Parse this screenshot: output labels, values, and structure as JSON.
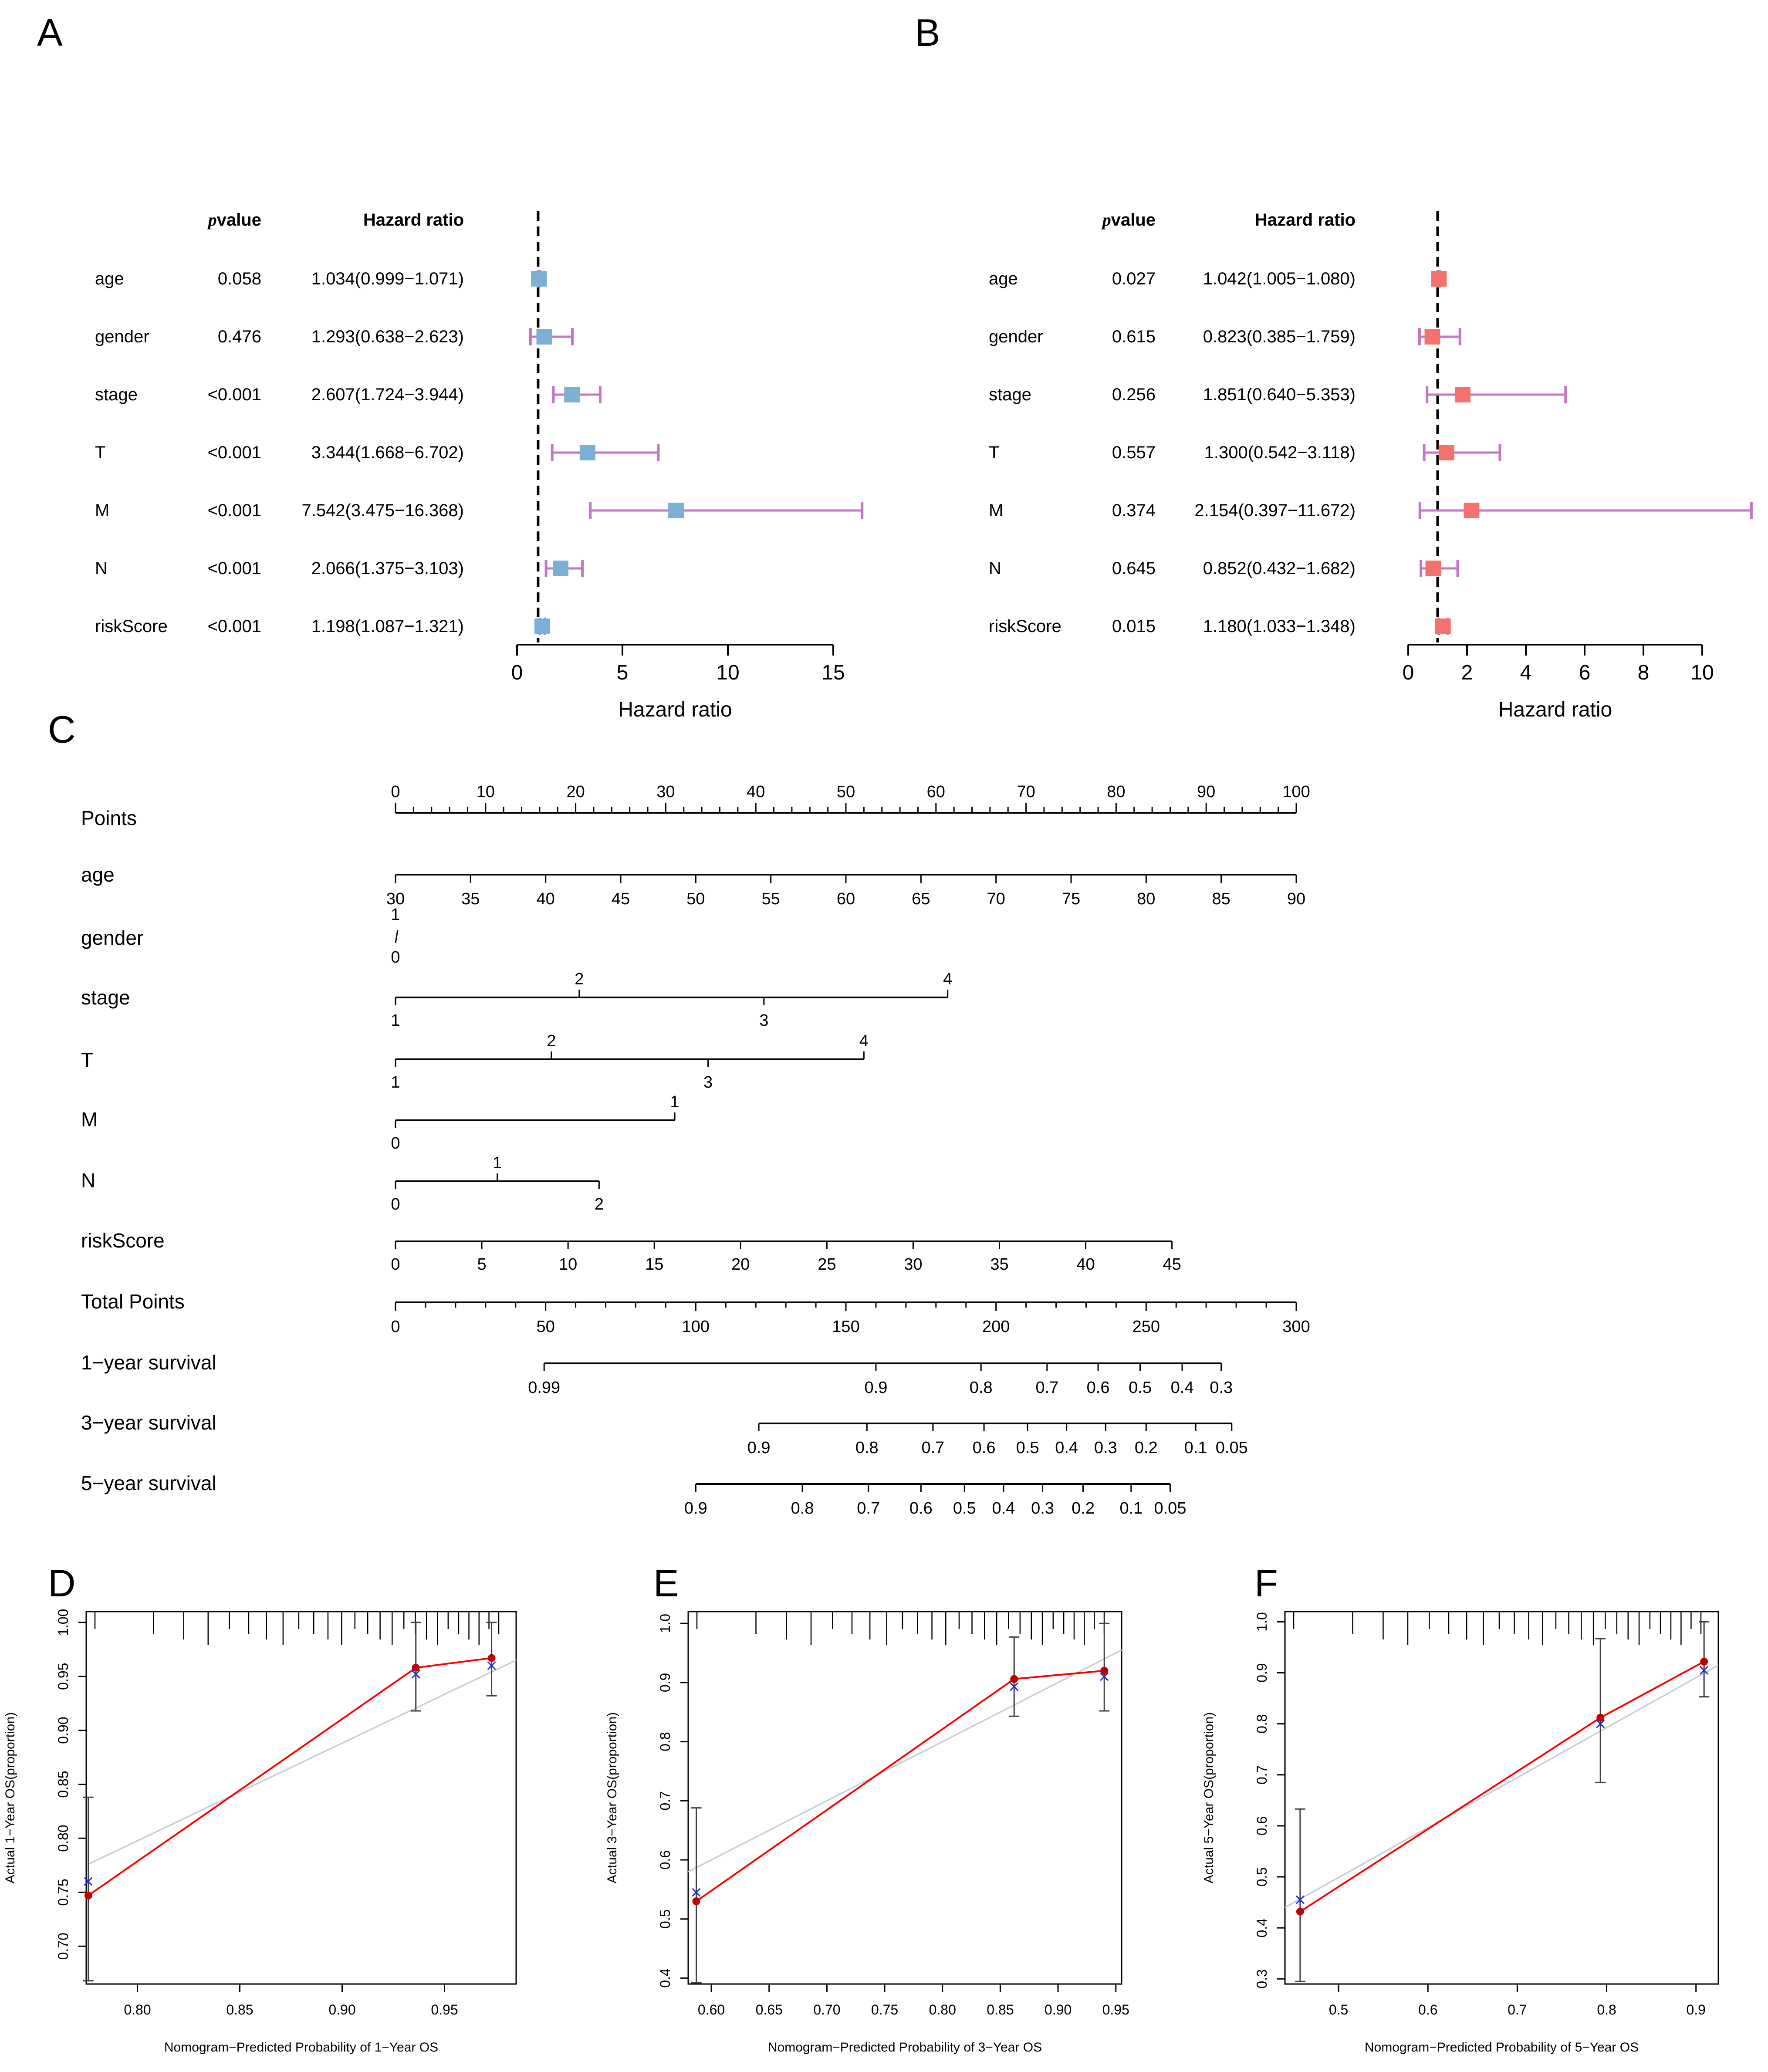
{
  "panel_labels": {
    "A": "A",
    "B": "B",
    "C": "C",
    "D": "D",
    "E": "E",
    "F": "F"
  },
  "forest_headers": {
    "pvalue": "pvalue",
    "hr": "Hazard ratio",
    "xlabel": "Hazard ratio"
  },
  "colors": {
    "forest_a_box": "#7bafd4",
    "forest_b_box": "#f4726d",
    "ci_line": "#c077c4",
    "cal_line": "#ff0000",
    "cal_point": "#c00000",
    "cal_x": "#1f2ed6",
    "cal_ideal": "#c8cdd8",
    "tick": "#000000"
  },
  "chart_data": [
    {
      "id": "A",
      "type": "forest",
      "rows": [
        {
          "name": "age",
          "p": "0.058",
          "hr_text": "1.034(0.999−1.071)",
          "hr": 1.034,
          "lo": 0.999,
          "hi": 1.071
        },
        {
          "name": "gender",
          "p": "0.476",
          "hr_text": "1.293(0.638−2.623)",
          "hr": 1.293,
          "lo": 0.638,
          "hi": 2.623
        },
        {
          "name": "stage",
          "p": "<0.001",
          "hr_text": "2.607(1.724−3.944)",
          "hr": 2.607,
          "lo": 1.724,
          "hi": 3.944
        },
        {
          "name": "T",
          "p": "<0.001",
          "hr_text": "3.344(1.668−6.702)",
          "hr": 3.344,
          "lo": 1.668,
          "hi": 6.702
        },
        {
          "name": "M",
          "p": "<0.001",
          "hr_text": "7.542(3.475−16.368)",
          "hr": 7.542,
          "lo": 3.475,
          "hi": 16.368
        },
        {
          "name": "N",
          "p": "<0.001",
          "hr_text": "2.066(1.375−3.103)",
          "hr": 2.066,
          "lo": 1.375,
          "hi": 3.103
        },
        {
          "name": "riskScore",
          "p": "<0.001",
          "hr_text": "1.198(1.087−1.321)",
          "hr": 1.198,
          "lo": 1.087,
          "hi": 1.321
        }
      ],
      "xlim": [
        0,
        15
      ],
      "ticks": [
        0,
        5,
        10,
        15
      ],
      "ref_line": 1
    },
    {
      "id": "B",
      "type": "forest",
      "rows": [
        {
          "name": "age",
          "p": "0.027",
          "hr_text": "1.042(1.005−1.080)",
          "hr": 1.042,
          "lo": 1.005,
          "hi": 1.08
        },
        {
          "name": "gender",
          "p": "0.615",
          "hr_text": "0.823(0.385−1.759)",
          "hr": 0.823,
          "lo": 0.385,
          "hi": 1.759
        },
        {
          "name": "stage",
          "p": "0.256",
          "hr_text": "1.851(0.640−5.353)",
          "hr": 1.851,
          "lo": 0.64,
          "hi": 5.353
        },
        {
          "name": "T",
          "p": "0.557",
          "hr_text": "1.300(0.542−3.118)",
          "hr": 1.3,
          "lo": 0.542,
          "hi": 3.118
        },
        {
          "name": "M",
          "p": "0.374",
          "hr_text": "2.154(0.397−11.672)",
          "hr": 2.154,
          "lo": 0.397,
          "hi": 11.672
        },
        {
          "name": "N",
          "p": "0.645",
          "hr_text": "0.852(0.432−1.682)",
          "hr": 0.852,
          "lo": 0.432,
          "hi": 1.682
        },
        {
          "name": "riskScore",
          "p": "0.015",
          "hr_text": "1.180(1.033−1.348)",
          "hr": 1.18,
          "lo": 1.033,
          "hi": 1.348
        }
      ],
      "xlim": [
        0,
        10
      ],
      "ticks": [
        0,
        2,
        4,
        6,
        8,
        10
      ],
      "ref_line": 1
    },
    {
      "id": "C",
      "type": "nomogram",
      "rows": [
        {
          "name": "Points",
          "kind": "points",
          "min": 0,
          "max": 100,
          "labels": [
            [
              0,
              "0"
            ],
            [
              10,
              "10"
            ],
            [
              20,
              "20"
            ],
            [
              30,
              "30"
            ],
            [
              40,
              "40"
            ],
            [
              50,
              "50"
            ],
            [
              60,
              "60"
            ],
            [
              70,
              "70"
            ],
            [
              80,
              "80"
            ],
            [
              90,
              "90"
            ],
            [
              100,
              "100"
            ]
          ]
        },
        {
          "name": "age",
          "kind": "scale",
          "pmin": 0,
          "pmax": 100,
          "labels": [
            [
              0,
              "30"
            ],
            [
              8.333,
              "35"
            ],
            [
              16.667,
              "40"
            ],
            [
              25,
              "45"
            ],
            [
              33.333,
              "50"
            ],
            [
              41.667,
              "55"
            ],
            [
              50,
              "60"
            ],
            [
              58.333,
              "65"
            ],
            [
              66.667,
              "70"
            ],
            [
              75,
              "75"
            ],
            [
              83.333,
              "80"
            ],
            [
              91.667,
              "85"
            ],
            [
              100,
              "90"
            ]
          ],
          "pos": "below"
        },
        {
          "name": "gender",
          "kind": "gender",
          "labels": [
            [
              0,
              "1",
              "above"
            ],
            [
              0,
              "0",
              "below"
            ]
          ]
        },
        {
          "name": "stage",
          "kind": "scale",
          "pmin": 0,
          "pmax": 61.3,
          "labels": [
            [
              0,
              "1",
              "below"
            ],
            [
              20.4,
              "2",
              "above"
            ],
            [
              40.9,
              "3",
              "below"
            ],
            [
              61.3,
              "4",
              "above"
            ]
          ]
        },
        {
          "name": "T",
          "kind": "scale",
          "pmin": 0,
          "pmax": 52,
          "labels": [
            [
              0,
              "1",
              "below"
            ],
            [
              17.3,
              "2",
              "above"
            ],
            [
              34.7,
              "3",
              "below"
            ],
            [
              52,
              "4",
              "above"
            ]
          ]
        },
        {
          "name": "M",
          "kind": "scale",
          "pmin": 0,
          "pmax": 31,
          "labels": [
            [
              0,
              "0",
              "below"
            ],
            [
              31,
              "1",
              "above"
            ]
          ]
        },
        {
          "name": "N",
          "kind": "scale",
          "pmin": 0,
          "pmax": 22.6,
          "labels": [
            [
              0,
              "0",
              "below"
            ],
            [
              11.3,
              "1",
              "above"
            ],
            [
              22.6,
              "2",
              "below"
            ]
          ]
        },
        {
          "name": "riskScore",
          "kind": "scale",
          "pmin": 0,
          "pmax": 100,
          "labels": [
            [
              0,
              "0"
            ],
            [
              5,
              "5"
            ],
            [
              10,
              "10"
            ],
            [
              15,
              "15"
            ],
            [
              20,
              "20"
            ],
            [
              25,
              "25"
            ],
            [
              30,
              "30"
            ],
            [
              35,
              "35"
            ],
            [
              40,
              "40"
            ],
            [
              45,
              "45"
            ]
          ],
          "value_max": 45,
          "pts_max": 86.2,
          "pos": "below"
        },
        {
          "name": "Total Points",
          "kind": "total",
          "min": 0,
          "max": 300,
          "labels": [
            [
              0,
              "0"
            ],
            [
              50,
              "50"
            ],
            [
              100,
              "100"
            ],
            [
              150,
              "150"
            ],
            [
              200,
              "200"
            ],
            [
              250,
              "250"
            ],
            [
              300,
              "300"
            ]
          ]
        },
        {
          "name": "1−year survival",
          "kind": "surv",
          "labels": [
            [
              49.5,
              "0.99"
            ],
            [
              160,
              "0.9"
            ],
            [
              195,
              "0.8"
            ],
            [
              217,
              "0.7"
            ],
            [
              234,
              "0.6"
            ],
            [
              248,
              "0.5"
            ],
            [
              262,
              "0.4"
            ],
            [
              275,
              "0.3"
            ]
          ]
        },
        {
          "name": "3−year survival",
          "kind": "surv",
          "labels": [
            [
              121,
              "0.9"
            ],
            [
              157,
              "0.8"
            ],
            [
              179,
              "0.7"
            ],
            [
              196,
              "0.6"
            ],
            [
              210.5,
              "0.5"
            ],
            [
              223.5,
              "0.4"
            ],
            [
              236.5,
              "0.3"
            ],
            [
              250,
              "0.2"
            ],
            [
              266.5,
              "0.1"
            ],
            [
              278.5,
              "0.05"
            ]
          ]
        },
        {
          "name": "5−year survival",
          "kind": "surv",
          "labels": [
            [
              100,
              "0.9"
            ],
            [
              135.5,
              "0.8"
            ],
            [
              157.5,
              "0.7"
            ],
            [
              175,
              "0.6"
            ],
            [
              189.5,
              "0.5"
            ],
            [
              202.5,
              "0.4"
            ],
            [
              215.5,
              "0.3"
            ],
            [
              229,
              "0.2"
            ],
            [
              245,
              "0.1"
            ],
            [
              258,
              "0.05"
            ]
          ]
        }
      ]
    },
    {
      "id": "D",
      "type": "calibration",
      "xlabel": "Nomogram−Predicted Probability of 1−Year OS",
      "ylabel": "Actual 1−Year OS(proportion)",
      "xlim": [
        0.775,
        0.985
      ],
      "ylim": [
        0.665,
        1.01
      ],
      "xticks": [
        [
          0.8,
          "0.80"
        ],
        [
          0.85,
          "0.85"
        ],
        [
          0.9,
          "0.90"
        ],
        [
          0.95,
          "0.95"
        ]
      ],
      "yticks": [
        [
          0.7,
          "0.70"
        ],
        [
          0.75,
          "0.75"
        ],
        [
          0.8,
          "0.80"
        ],
        [
          0.85,
          "0.85"
        ],
        [
          0.9,
          "0.90"
        ],
        [
          0.95,
          "0.95"
        ],
        [
          1.0,
          "1.00"
        ]
      ],
      "points": [
        [
          0.776,
          0.747
        ],
        [
          0.936,
          0.958
        ],
        [
          0.973,
          0.967
        ]
      ],
      "xmarks": [
        [
          0.776,
          0.76
        ],
        [
          0.936,
          0.952
        ],
        [
          0.973,
          0.96
        ]
      ],
      "ci": [
        [
          0.776,
          0.668,
          0.838
        ],
        [
          0.936,
          0.918,
          1.0
        ],
        [
          0.973,
          0.932,
          1.0
        ]
      ],
      "ideal": [
        [
          0.776,
          0.776
        ],
        [
          0.985,
          0.965
        ]
      ]
    },
    {
      "id": "E",
      "type": "calibration",
      "xlabel": "Nomogram−Predicted Probability of 3−Year OS",
      "ylabel": "Actual 3−Year OS(proportion)",
      "xlim": [
        0.58,
        0.955
      ],
      "ylim": [
        0.39,
        1.02
      ],
      "xticks": [
        [
          0.6,
          "0.60"
        ],
        [
          0.65,
          "0.65"
        ],
        [
          0.7,
          "0.70"
        ],
        [
          0.75,
          "0.75"
        ],
        [
          0.8,
          "0.80"
        ],
        [
          0.85,
          "0.85"
        ],
        [
          0.9,
          "0.90"
        ],
        [
          0.95,
          "0.95"
        ]
      ],
      "yticks": [
        [
          0.4,
          "0.4"
        ],
        [
          0.5,
          "0.5"
        ],
        [
          0.6,
          "0.6"
        ],
        [
          0.7,
          "0.7"
        ],
        [
          0.8,
          "0.8"
        ],
        [
          0.9,
          "0.9"
        ],
        [
          1.0,
          "1.0"
        ]
      ],
      "points": [
        [
          0.587,
          0.53
        ],
        [
          0.862,
          0.906
        ],
        [
          0.94,
          0.92
        ]
      ],
      "xmarks": [
        [
          0.587,
          0.545
        ],
        [
          0.862,
          0.893
        ],
        [
          0.94,
          0.91
        ]
      ],
      "ci": [
        [
          0.587,
          0.392,
          0.688
        ],
        [
          0.862,
          0.843,
          0.977
        ],
        [
          0.94,
          0.852,
          1.0
        ]
      ],
      "ideal": [
        [
          0.58,
          0.58
        ],
        [
          0.955,
          0.955
        ]
      ]
    },
    {
      "id": "F",
      "type": "calibration",
      "xlabel": "Nomogram−Predicted Probability of 5−Year OS",
      "ylabel": "Actual 5−Year OS(proportion)",
      "xlim": [
        0.44,
        0.925
      ],
      "ylim": [
        0.29,
        1.02
      ],
      "xticks": [
        [
          0.5,
          "0.5"
        ],
        [
          0.6,
          "0.6"
        ],
        [
          0.7,
          "0.7"
        ],
        [
          0.8,
          "0.8"
        ],
        [
          0.9,
          "0.9"
        ]
      ],
      "yticks": [
        [
          0.3,
          "0.3"
        ],
        [
          0.4,
          "0.4"
        ],
        [
          0.5,
          "0.5"
        ],
        [
          0.6,
          "0.6"
        ],
        [
          0.7,
          "0.7"
        ],
        [
          0.8,
          "0.8"
        ],
        [
          0.9,
          "0.9"
        ],
        [
          1.0,
          "1.0"
        ]
      ],
      "points": [
        [
          0.457,
          0.432
        ],
        [
          0.793,
          0.812
        ],
        [
          0.909,
          0.922
        ]
      ],
      "xmarks": [
        [
          0.457,
          0.455
        ],
        [
          0.793,
          0.8
        ],
        [
          0.909,
          0.905
        ]
      ],
      "ci": [
        [
          0.457,
          0.295,
          0.633
        ],
        [
          0.793,
          0.685,
          0.967
        ],
        [
          0.909,
          0.853,
          1.0
        ]
      ],
      "ideal": [
        [
          0.44,
          0.44
        ],
        [
          0.925,
          0.915
        ]
      ]
    }
  ]
}
